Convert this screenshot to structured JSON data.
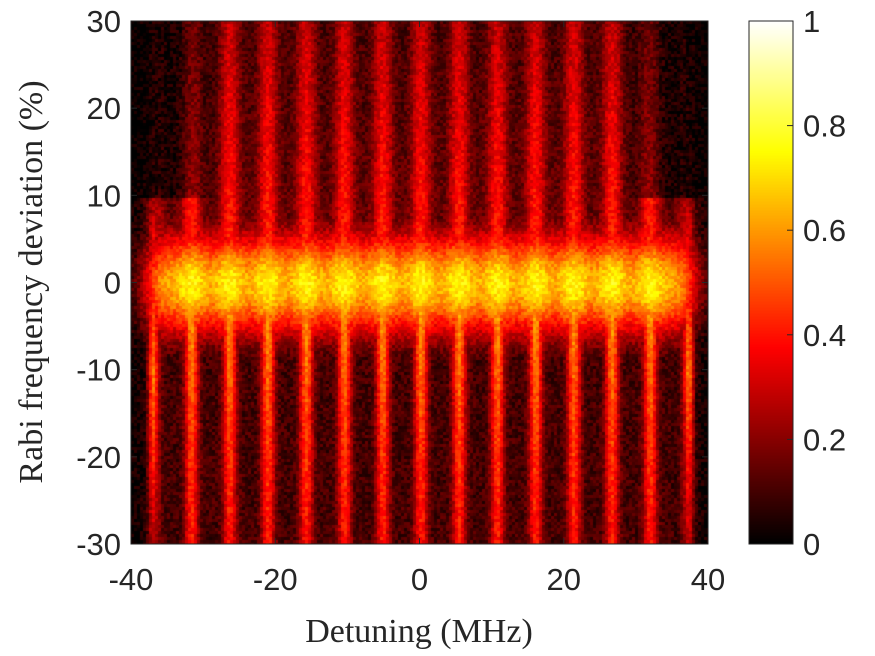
{
  "chart_data": {
    "type": "heatmap",
    "title": "",
    "xlabel": "Detuning (MHz)",
    "ylabel": "Rabi frequency deviation (%)",
    "xlim": [
      -40,
      40
    ],
    "ylim": [
      -30,
      30
    ],
    "x_ticks": [
      "-40",
      "-20",
      "0",
      "20",
      "40"
    ],
    "y_ticks": [
      "30",
      "20",
      "10",
      "0",
      "-10",
      "-20",
      "-30"
    ],
    "colorbar": {
      "colormap": "hot",
      "range": [
        0,
        1
      ],
      "ticks": [
        "1",
        "0.8",
        "0.6",
        "0.4",
        "0.2",
        "0"
      ]
    },
    "grid": false,
    "description_model": {
      "value_range": [
        0,
        1
      ],
      "peak_value_near_zero_deviation": 0.75,
      "fringe_count_across_x": 14,
      "fringe_period_mhz": 5.3,
      "central_band_halfwidth_percent": 6,
      "top_region_value": 0.45,
      "bottom_region_value": 0.1,
      "edge_falloff_mhz": 34
    }
  }
}
